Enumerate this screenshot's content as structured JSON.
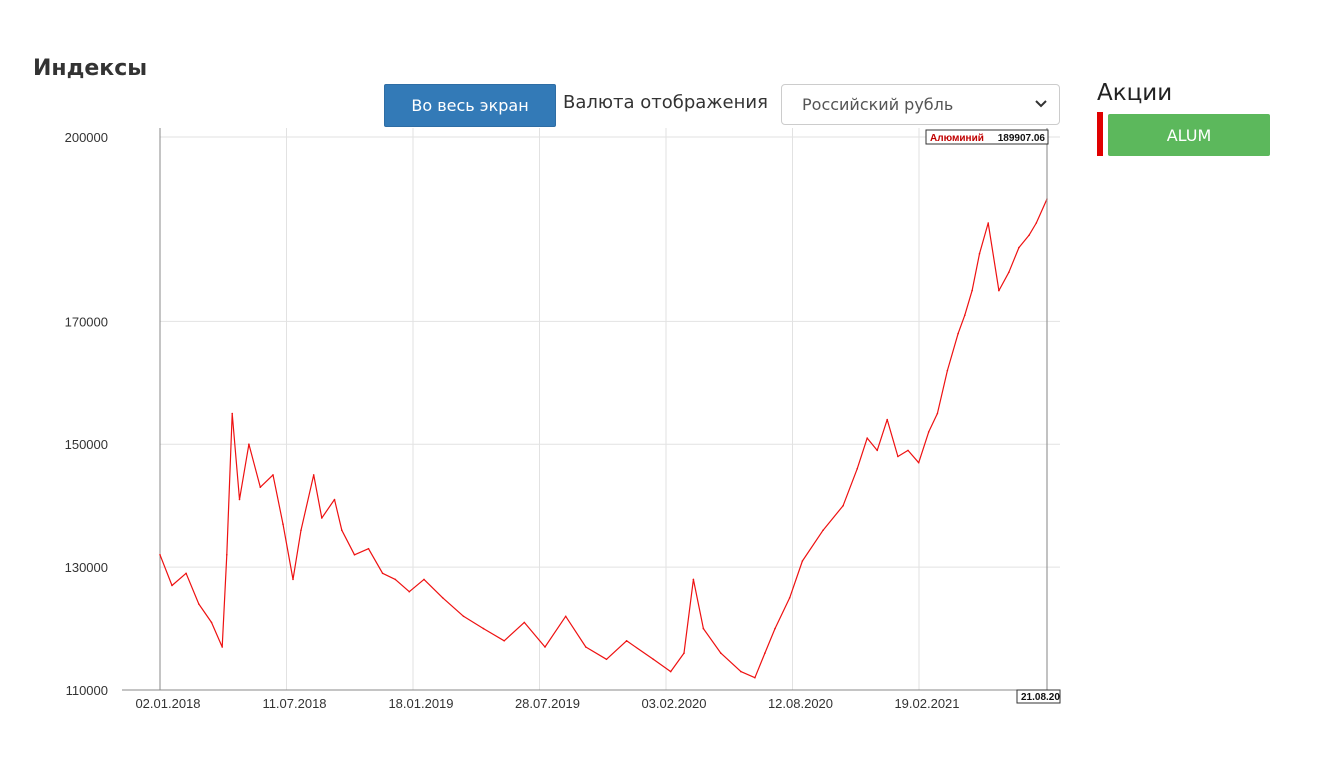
{
  "header": {
    "title": "Индексы"
  },
  "toolbar": {
    "fullscreen_label": "Во весь экран",
    "currency_label": "Валюта отображения",
    "currency_value": "Российский рубль"
  },
  "stocks": {
    "title": "Акции",
    "items": [
      {
        "label": "ALUM",
        "color": "#5cb85c",
        "marker_color": "#e00000"
      }
    ]
  },
  "chart_data": {
    "type": "line",
    "xlabel": "",
    "ylabel": "",
    "ylim": [
      110000,
      200000
    ],
    "yticks": [
      "200000",
      "170000",
      "150000",
      "130000",
      "110000"
    ],
    "xticks": [
      "02.01.2018",
      "11.07.2018",
      "18.01.2019",
      "28.07.2019",
      "03.02.2020",
      "12.08.2020",
      "19.02.2021"
    ],
    "crosshair_date": "21.08.20",
    "grid": true,
    "series": [
      {
        "name": "Алюминий",
        "color": "#ee1111",
        "last_value_label": "189907.06",
        "x": [
          "2018-01-02",
          "2018-01-20",
          "2018-02-10",
          "2018-03-01",
          "2018-03-20",
          "2018-04-05",
          "2018-04-12",
          "2018-04-20",
          "2018-05-01",
          "2018-05-15",
          "2018-06-01",
          "2018-06-20",
          "2018-07-05",
          "2018-07-20",
          "2018-08-01",
          "2018-08-20",
          "2018-09-01",
          "2018-09-20",
          "2018-10-01",
          "2018-10-20",
          "2018-11-10",
          "2018-12-01",
          "2018-12-20",
          "2019-01-10",
          "2019-02-01",
          "2019-03-01",
          "2019-04-01",
          "2019-05-01",
          "2019-06-01",
          "2019-07-01",
          "2019-08-01",
          "2019-09-01",
          "2019-10-01",
          "2019-11-01",
          "2019-12-01",
          "2020-01-10",
          "2020-02-05",
          "2020-02-25",
          "2020-03-10",
          "2020-03-25",
          "2020-04-20",
          "2020-05-20",
          "2020-06-10",
          "2020-06-25",
          "2020-07-10",
          "2020-08-01",
          "2020-08-20",
          "2020-09-20",
          "2020-10-20",
          "2020-11-10",
          "2020-11-25",
          "2020-12-10",
          "2020-12-25",
          "2021-01-10",
          "2021-01-25",
          "2021-02-10",
          "2021-02-25",
          "2021-03-10",
          "2021-03-25",
          "2021-04-10",
          "2021-04-20",
          "2021-05-01",
          "2021-05-12",
          "2021-05-25",
          "2021-06-10",
          "2021-06-25",
          "2021-07-10",
          "2021-07-25",
          "2021-08-05",
          "2021-08-21"
        ],
        "y": [
          132000,
          127000,
          129000,
          124000,
          121000,
          117000,
          132000,
          155000,
          141000,
          150000,
          143000,
          145000,
          137000,
          128000,
          136000,
          145000,
          138000,
          141000,
          136000,
          132000,
          133000,
          129000,
          128000,
          126000,
          128000,
          125000,
          122000,
          120000,
          118000,
          121000,
          117000,
          122000,
          117000,
          115000,
          118000,
          115000,
          113000,
          116000,
          128000,
          120000,
          116000,
          113000,
          112000,
          116000,
          120000,
          125000,
          131000,
          136000,
          140000,
          146000,
          151000,
          149000,
          154000,
          148000,
          149000,
          147000,
          152000,
          155000,
          162000,
          168000,
          171000,
          175000,
          181000,
          186000,
          175000,
          178000,
          182000,
          184000,
          186000,
          189907
        ]
      }
    ]
  }
}
